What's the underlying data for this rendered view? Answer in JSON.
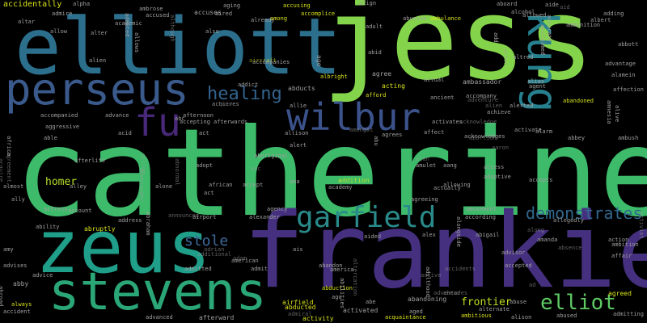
{
  "background": "#000000",
  "words": [
    {
      "text": "catherine",
      "color": "#3dbb6a"
    },
    {
      "text": "jess",
      "color": "#84d44b"
    },
    {
      "text": "frankie",
      "color": "#45307f"
    },
    {
      "text": "elliott",
      "color": "#2c6f8d"
    },
    {
      "text": "zeus",
      "color": "#1f9e89"
    },
    {
      "text": "stevens",
      "color": "#2aa677"
    },
    {
      "text": "perseus",
      "color": "#3a5a8c"
    },
    {
      "text": "wilbur",
      "color": "#3b528b"
    },
    {
      "text": "kung",
      "color": "#27808e"
    },
    {
      "text": "garfield",
      "color": "#2a8a8a"
    },
    {
      "text": "fu",
      "color": "#482878"
    },
    {
      "text": "healing",
      "color": "#33638d"
    },
    {
      "text": "elliot",
      "color": "#5ec962"
    },
    {
      "text": "demonstrates",
      "color": "#31688e"
    },
    {
      "text": "stole",
      "color": "#3e6b9b"
    },
    {
      "text": "homer",
      "color": "#b5de2b"
    },
    {
      "text": "frontier",
      "color": "#c2df23"
    },
    {
      "text": "accidentally",
      "color": "#d8e219"
    },
    {
      "text": "alpha",
      "color": "#9f9f9f"
    },
    {
      "text": "acid",
      "color": "#9f9f9f"
    },
    {
      "text": "act",
      "color": "#9f9f9f"
    },
    {
      "text": "actress",
      "color": "#9f9f9f"
    },
    {
      "text": "ability",
      "color": "#9f9f9f"
    },
    {
      "text": "abruptly",
      "color": "#d8e219"
    },
    {
      "text": "address",
      "color": "#9f9f9f"
    },
    {
      "text": "airport",
      "color": "#9f9f9f"
    },
    {
      "text": "afterlife",
      "color": "#9f9f9f"
    },
    {
      "text": "african",
      "color": "#9f9f9f"
    },
    {
      "text": "accept",
      "color": "#9f9f9f"
    },
    {
      "text": "academy",
      "color": "#9f9f9f"
    },
    {
      "text": "addition",
      "color": "#b5de2b"
    },
    {
      "text": "adoptive",
      "color": "#9f9f9f"
    },
    {
      "text": "accepts",
      "color": "#9f9f9f"
    },
    {
      "text": "abbey",
      "color": "#9f9f9f"
    },
    {
      "text": "ambush",
      "color": "#9f9f9f"
    },
    {
      "text": "alarm",
      "color": "#9f9f9f"
    },
    {
      "text": "amusement",
      "color": "#9f9f9f"
    },
    {
      "text": "according",
      "color": "#9f9f9f"
    },
    {
      "text": "abigail",
      "color": "#9f9f9f"
    },
    {
      "text": "accepted",
      "color": "#9f9f9f"
    },
    {
      "text": "alternate",
      "color": "#9f9f9f"
    },
    {
      "text": "abused",
      "color": "#9f9f9f"
    },
    {
      "text": "alison",
      "color": "#9f9f9f"
    },
    {
      "text": "admitting",
      "color": "#9f9f9f"
    },
    {
      "text": "agreed",
      "color": "#d8e219"
    },
    {
      "text": "ambition",
      "color": "#9f9f9f"
    },
    {
      "text": "action",
      "color": "#9f9f9f"
    },
    {
      "text": "affair",
      "color": "#9f9f9f"
    },
    {
      "text": "adopt",
      "color": "#9f9f9f"
    },
    {
      "text": "abnormal",
      "color": "#9f9f9f"
    },
    {
      "text": "act",
      "color": "#9f9f9f"
    },
    {
      "text": "alley",
      "color": "#9f9f9f"
    },
    {
      "text": "account",
      "color": "#9f9f9f"
    },
    {
      "text": "agency",
      "color": "#9f9f9f"
    },
    {
      "text": "allows",
      "color": "#9f9f9f"
    },
    {
      "text": "aging",
      "color": "#9f9f9f"
    },
    {
      "text": "accusing",
      "color": "#d8e219"
    },
    {
      "text": "accomplice",
      "color": "#d8e219"
    },
    {
      "text": "align",
      "color": "#9f9f9f"
    },
    {
      "text": "aboard",
      "color": "#9f9f9f"
    },
    {
      "text": "alcohol",
      "color": "#9f9f9f"
    },
    {
      "text": "allowed",
      "color": "#9f9f9f"
    },
    {
      "text": "adding",
      "color": "#9f9f9f"
    },
    {
      "text": "albert",
      "color": "#9f9f9f"
    },
    {
      "text": "ammunition",
      "color": "#9f9f9f"
    },
    {
      "text": "advantage",
      "color": "#9f9f9f"
    },
    {
      "text": "alamein",
      "color": "#9f9f9f"
    },
    {
      "text": "affection",
      "color": "#9f9f9f"
    },
    {
      "text": "altred",
      "color": "#9f9f9f"
    },
    {
      "text": "alias",
      "color": "#9f9f9f"
    },
    {
      "text": "agent",
      "color": "#9f9f9f"
    },
    {
      "text": "alerted",
      "color": "#9f9f9f"
    },
    {
      "text": "abandoned",
      "color": "#d8e219"
    },
    {
      "text": "activate",
      "color": "#9f9f9f"
    },
    {
      "text": "acknowledges",
      "color": "#9f9f9f"
    },
    {
      "text": "accompany",
      "color": "#9f9f9f"
    },
    {
      "text": "ancient",
      "color": "#9f9f9f"
    },
    {
      "text": "actual",
      "color": "#9f9f9f"
    },
    {
      "text": "ambassador",
      "color": "#9f9f9f"
    },
    {
      "text": "ambulance",
      "color": "#d8e219"
    },
    {
      "text": "abusive",
      "color": "#9f9f9f"
    },
    {
      "text": "adult",
      "color": "#9f9f9f"
    },
    {
      "text": "agree",
      "color": "#9f9f9f"
    },
    {
      "text": "acting",
      "color": "#d8e219"
    },
    {
      "text": "afford",
      "color": "#d8e219"
    },
    {
      "text": "allie",
      "color": "#9f9f9f"
    },
    {
      "text": "abducts",
      "color": "#9f9f9f"
    },
    {
      "text": "albright",
      "color": "#d8e219"
    },
    {
      "text": "addict",
      "color": "#9f9f9f"
    },
    {
      "text": "accompanies",
      "color": "#9f9f9f"
    },
    {
      "text": "abc",
      "color": "#9f9f9f"
    },
    {
      "text": "acquires",
      "color": "#9f9f9f"
    },
    {
      "text": "afternoon",
      "color": "#9f9f9f"
    },
    {
      "text": "accepting",
      "color": "#9f9f9f"
    },
    {
      "text": "afterwards",
      "color": "#9f9f9f"
    },
    {
      "text": "able",
      "color": "#9f9f9f"
    },
    {
      "text": "aggressive",
      "color": "#9f9f9f"
    },
    {
      "text": "accompanied",
      "color": "#9f9f9f"
    },
    {
      "text": "advance",
      "color": "#9f9f9f"
    },
    {
      "text": "alone",
      "color": "#9f9f9f"
    },
    {
      "text": "almost",
      "color": "#9f9f9f"
    },
    {
      "text": "ally",
      "color": "#9f9f9f"
    },
    {
      "text": "amy",
      "color": "#9f9f9f"
    },
    {
      "text": "advises",
      "color": "#9f9f9f"
    },
    {
      "text": "advice",
      "color": "#9f9f9f"
    },
    {
      "text": "abby",
      "color": "#9f9f9f"
    },
    {
      "text": "always",
      "color": "#d8e219"
    },
    {
      "text": "accident",
      "color": "#9f9f9f"
    },
    {
      "text": "advanced",
      "color": "#9f9f9f"
    },
    {
      "text": "afterward",
      "color": "#9f9f9f"
    },
    {
      "text": "activity",
      "color": "#d8e219"
    },
    {
      "text": "abducted",
      "color": "#d8e219"
    },
    {
      "text": "airfield",
      "color": "#d8e219"
    },
    {
      "text": "abduction",
      "color": "#d8e219"
    },
    {
      "text": "ago",
      "color": "#9f9f9f"
    },
    {
      "text": "abe",
      "color": "#9f9f9f"
    },
    {
      "text": "activated",
      "color": "#9f9f9f"
    },
    {
      "text": "acquaintance",
      "color": "#d8e219"
    },
    {
      "text": "aged",
      "color": "#9f9f9f"
    },
    {
      "text": "abandoning",
      "color": "#9f9f9f"
    },
    {
      "text": "ambitious",
      "color": "#d8e219"
    },
    {
      "text": "abuse",
      "color": "#9f9f9f"
    },
    {
      "text": "abandon",
      "color": "#9f9f9f"
    },
    {
      "text": "america",
      "color": "#9f9f9f"
    },
    {
      "text": "american",
      "color": "#9f9f9f"
    },
    {
      "text": "admitted",
      "color": "#9f9f9f"
    },
    {
      "text": "admit",
      "color": "#9f9f9f"
    },
    {
      "text": "ais",
      "color": "#9f9f9f"
    },
    {
      "text": "adam",
      "color": "#9f9f9f"
    },
    {
      "text": "alexander",
      "color": "#9f9f9f"
    },
    {
      "text": "alex",
      "color": "#9f9f9f"
    },
    {
      "text": "aided",
      "color": "#9f9f9f"
    },
    {
      "text": "agreeing",
      "color": "#9f9f9f"
    },
    {
      "text": "actually",
      "color": "#9f9f9f"
    },
    {
      "text": "allowing",
      "color": "#9f9f9f"
    },
    {
      "text": "aang",
      "color": "#9f9f9f"
    },
    {
      "text": "access",
      "color": "#9f9f9f"
    },
    {
      "text": "amulet",
      "color": "#9f9f9f"
    },
    {
      "text": "alan",
      "color": "#9f9f9f"
    },
    {
      "text": "alert",
      "color": "#9f9f9f"
    },
    {
      "text": "agrees",
      "color": "#9f9f9f"
    },
    {
      "text": "affect",
      "color": "#9f9f9f"
    },
    {
      "text": "activates",
      "color": "#9f9f9f"
    },
    {
      "text": "allison",
      "color": "#9f9f9f"
    },
    {
      "text": "amongst",
      "color": "#9f9f9f"
    },
    {
      "text": "aboriginal",
      "color": "#9f9f9f"
    },
    {
      "text": "ana",
      "color": "#9f9f9f"
    },
    {
      "text": "abu",
      "color": "#9f9f9f"
    },
    {
      "text": "alongside",
      "color": "#9f9f9f"
    },
    {
      "text": "abortion",
      "color": "#9f9f9f"
    },
    {
      "text": "ahead",
      "color": "#9f9f9f"
    },
    {
      "text": "adventure",
      "color": "#9f9f9f"
    },
    {
      "text": "advisor",
      "color": "#9f9f9f"
    },
    {
      "text": "amanda",
      "color": "#9f9f9f"
    },
    {
      "text": "ad",
      "color": "#9f9f9f"
    },
    {
      "text": "allegedly",
      "color": "#9f9f9f"
    },
    {
      "text": "along",
      "color": "#9f9f9f"
    },
    {
      "text": "absence",
      "color": "#9f9f9f"
    },
    {
      "text": "admire",
      "color": "#9f9f9f"
    },
    {
      "text": "academic",
      "color": "#9f9f9f"
    },
    {
      "text": "aired",
      "color": "#9f9f9f"
    },
    {
      "text": "accuses",
      "color": "#9f9f9f"
    },
    {
      "text": "among",
      "color": "#d8e219"
    },
    {
      "text": "already",
      "color": "#9f9f9f"
    },
    {
      "text": "also",
      "color": "#9f9f9f"
    },
    {
      "text": "accused",
      "color": "#9f9f9f"
    },
    {
      "text": "ambrose",
      "color": "#9f9f9f"
    },
    {
      "text": "alter",
      "color": "#9f9f9f"
    },
    {
      "text": "altar",
      "color": "#9f9f9f"
    },
    {
      "text": "allow",
      "color": "#9f9f9f"
    },
    {
      "text": "alien",
      "color": "#9f9f9f"
    },
    {
      "text": "age",
      "color": "#9f9f9f"
    },
    {
      "text": "aircraft",
      "color": "#d8e219"
    },
    {
      "text": "abid",
      "color": "#9f9f9f"
    },
    {
      "text": "aide",
      "color": "#9f9f9f"
    },
    {
      "text": "aid",
      "color": "#9f9f9f"
    },
    {
      "text": "achieve",
      "color": "#9f9f9f"
    },
    {
      "text": "alien",
      "color": "#9f9f9f"
    },
    {
      "text": "abbott",
      "color": "#9f9f9f"
    },
    {
      "text": "add",
      "color": "#9f9f9f"
    },
    {
      "text": "actor",
      "color": "#9f9f9f"
    },
    {
      "text": "acclaimed",
      "color": "#9f9f9f"
    },
    {
      "text": "accurate",
      "color": "#9f9f9f"
    },
    {
      "text": "amnesia",
      "color": "#9f9f9f"
    },
    {
      "text": "alive",
      "color": "#9f9f9f"
    },
    {
      "text": "although",
      "color": "#9f9f9f"
    },
    {
      "text": "adopted",
      "color": "#9f9f9f"
    },
    {
      "text": "announced",
      "color": "#9f9f9f"
    },
    {
      "text": "abraham",
      "color": "#9f9f9f"
    },
    {
      "text": "africa",
      "color": "#9f9f9f"
    },
    {
      "text": "agreement",
      "color": "#9f9f9f"
    },
    {
      "text": "ailing",
      "color": "#9f9f9f"
    },
    {
      "text": "aleksander",
      "color": "#9f9f9f"
    },
    {
      "text": "abroad",
      "color": "#9f9f9f"
    },
    {
      "text": "aec",
      "color": "#9f9f9f"
    },
    {
      "text": "accidents",
      "color": "#9f9f9f"
    },
    {
      "text": "altercation",
      "color": "#9f9f9f"
    },
    {
      "text": "adulthood",
      "color": "#9f9f9f"
    },
    {
      "text": "activist",
      "color": "#9f9f9f"
    },
    {
      "text": "abilities",
      "color": "#9f9f9f"
    },
    {
      "text": "acquire",
      "color": "#9f9f9f"
    },
    {
      "text": "adventures",
      "color": "#9f9f9f"
    },
    {
      "text": "additional",
      "color": "#9f9f9f"
    },
    {
      "text": "adrian",
      "color": "#9f9f9f"
    },
    {
      "text": "active",
      "color": "#9f9f9f"
    },
    {
      "text": "admiral",
      "color": "#9f9f9f"
    },
    {
      "text": "aaron",
      "color": "#9f9f9f"
    },
    {
      "text": "acknowledge",
      "color": "#9f9f9f"
    },
    {
      "text": "achieves",
      "color": "#9f9f9f"
    },
    {
      "text": "aftermath",
      "color": "#9f9f9f"
    },
    {
      "text": "assc",
      "color": "#9f9f9f"
    },
    {
      "text": "admirer",
      "color": "#9f9f9f"
    },
    {
      "text": "aang",
      "color": "#9f9f9f"
    },
    {
      "text": "alibi",
      "color": "#9f9f9f"
    },
    {
      "text": "academic",
      "color": "#9f9f9f"
    },
    {
      "text": "ally",
      "color": "#9f9f9f"
    },
    {
      "text": "accuse",
      "color": "#9f9f9f"
    },
    {
      "text": "amount",
      "color": "#9f9f9f"
    }
  ]
}
